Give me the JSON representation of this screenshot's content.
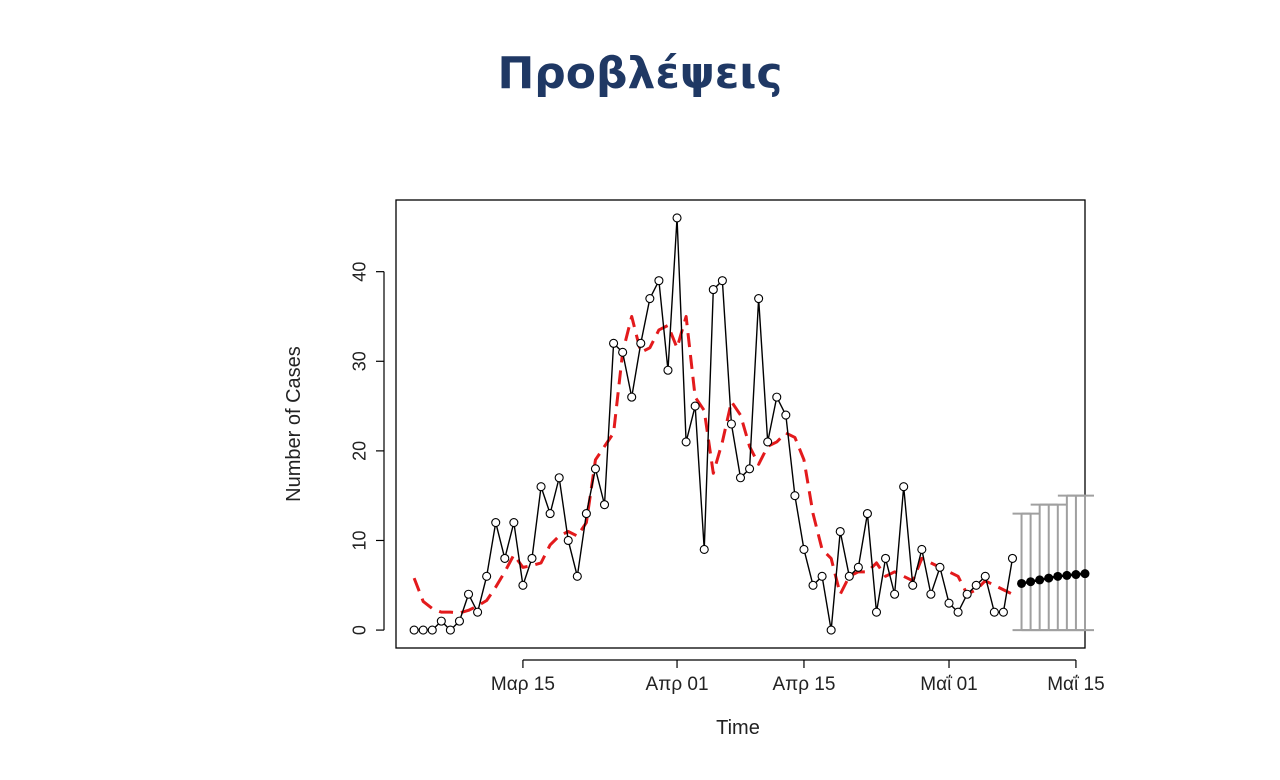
{
  "slide": {
    "title": "Προβλέψεις"
  },
  "colors": {
    "title": "#1f3864",
    "observed": "#000000",
    "fitted": "#e31a1c",
    "interval": "#a0a0a0",
    "forecast": "#000000"
  },
  "chart_data": {
    "type": "line",
    "xlabel": "Time",
    "ylabel": "Number of Cases",
    "x_start": "2020-03-03",
    "xlim": [
      "2020-03-01",
      "2020-05-16"
    ],
    "ylim": [
      -2,
      48
    ],
    "x_ticks": [
      {
        "date": "2020-03-15",
        "label": "Μαρ 15"
      },
      {
        "date": "2020-04-01",
        "label": "Απρ 01"
      },
      {
        "date": "2020-04-15",
        "label": "Απρ 15"
      },
      {
        "date": "2020-05-01",
        "label": "Μαΐ 01"
      },
      {
        "date": "2020-05-15",
        "label": "Μαΐ 15"
      }
    ],
    "y_ticks": [
      0,
      10,
      20,
      30,
      40
    ],
    "series": [
      {
        "key": "observed",
        "style": "line+open-circles",
        "values": [
          0,
          0,
          0,
          1,
          0,
          1,
          4,
          2,
          6,
          12,
          8,
          12,
          5,
          8,
          16,
          13,
          17,
          10,
          6,
          13,
          18,
          14,
          32,
          31,
          26,
          32,
          37,
          39,
          29,
          46,
          21,
          25,
          9,
          38,
          39,
          23,
          17,
          18,
          37,
          21,
          26,
          24,
          15,
          9,
          5,
          6,
          0,
          11,
          6,
          7,
          13,
          2,
          8,
          4,
          16,
          5,
          9,
          4,
          7,
          3,
          2,
          4,
          5,
          6,
          2,
          2,
          8
        ]
      },
      {
        "key": "fitted",
        "style": "dashed",
        "values": [
          5.8,
          3.2,
          2.4,
          2.0,
          2.0,
          1.9,
          2.2,
          2.7,
          3.3,
          4.8,
          6.5,
          8.4,
          7.0,
          7.2,
          7.5,
          9.5,
          10.5,
          11.0,
          10.5,
          12.0,
          19.0,
          20.5,
          22.0,
          31.0,
          35.0,
          31.0,
          31.5,
          33.5,
          34.0,
          31.5,
          35.0,
          26.0,
          24.5,
          17.5,
          21.0,
          25.5,
          24.0,
          20.5,
          18.5,
          20.5,
          21.0,
          22.0,
          21.5,
          19.0,
          13.0,
          9.0,
          8.0,
          4.0,
          6.0,
          6.5,
          6.5,
          7.5,
          6.0,
          6.5,
          6.0,
          5.5,
          8.0,
          7.5,
          7.0,
          6.5,
          6.0,
          4.0,
          4.5,
          5.5,
          5.0,
          4.5,
          4.0
        ]
      },
      {
        "key": "forecast",
        "style": "line+filled-circles",
        "start_date": "2020-05-09",
        "values": [
          5.2,
          5.4,
          5.6,
          5.8,
          6.0,
          6.1,
          6.2,
          6.3
        ],
        "upper": [
          13,
          13,
          14,
          14,
          14,
          15,
          15,
          15
        ],
        "lower": [
          0,
          0,
          0,
          0,
          0,
          0,
          0,
          0
        ]
      }
    ]
  }
}
